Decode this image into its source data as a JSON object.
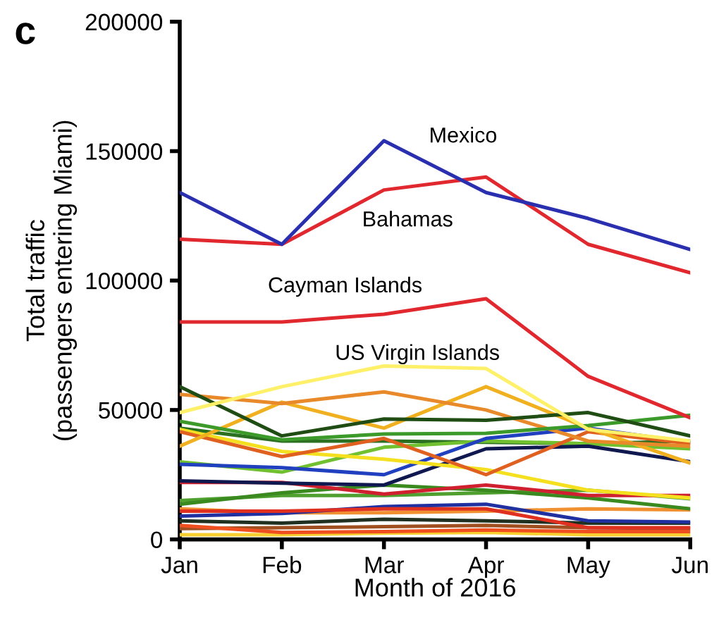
{
  "chart_data": {
    "type": "line",
    "xlabel": "Month of 2016",
    "ylabel": "Total traffic\n(passengers entering Miami)",
    "categories": [
      "Jan",
      "Feb",
      "Mar",
      "Apr",
      "May",
      "Jun"
    ],
    "ylim": [
      0,
      200000
    ],
    "yticks": [
      0,
      50000,
      100000,
      150000,
      200000
    ],
    "grid": false,
    "legend": false,
    "marker": "none",
    "line_style": "solid",
    "annotations": [
      "c"
    ],
    "series": [
      {
        "name": "Mexico",
        "color": "#2a2fb0",
        "values": [
          134000,
          114000,
          154000,
          134000,
          124000,
          112000
        ]
      },
      {
        "name": "Bahamas",
        "color": "#e0282e",
        "values": [
          116000,
          114000,
          135000,
          140000,
          114000,
          103000
        ]
      },
      {
        "name": "Cayman Islands",
        "color": "#e0282e",
        "values": [
          84000,
          84000,
          87000,
          93000,
          63000,
          47000
        ]
      },
      {
        "name": "US Virgin Islands",
        "color": "#fff06a",
        "values": [
          49000,
          59000,
          67000,
          66000,
          42500,
          38000
        ]
      },
      {
        "color": "#1f4d14",
        "values": [
          59000,
          40000,
          46500,
          46000,
          49000,
          40000
        ]
      },
      {
        "color": "#3c9a2a",
        "values": [
          45600,
          38500,
          40700,
          41000,
          44000,
          48000
        ]
      },
      {
        "color": "#e8892a",
        "values": [
          56000,
          52500,
          57000,
          50000,
          38000,
          36000
        ]
      },
      {
        "color": "#f0b020",
        "values": [
          36000,
          53000,
          43000,
          59000,
          43000,
          29500
        ]
      },
      {
        "color": "#e06020",
        "values": [
          41600,
          32000,
          39000,
          25000,
          41600,
          37000
        ]
      },
      {
        "color": "#f5e020",
        "values": [
          42500,
          34000,
          31000,
          27000,
          19000,
          16000
        ]
      },
      {
        "color": "#2040c0",
        "values": [
          29000,
          27700,
          25000,
          39000,
          43000,
          37500
        ]
      },
      {
        "color": "#101850",
        "values": [
          22600,
          21700,
          21000,
          35000,
          36000,
          30000
        ]
      },
      {
        "color": "#70c030",
        "values": [
          30000,
          26000,
          35600,
          38000,
          37000,
          35000
        ]
      },
      {
        "color": "#2a7020",
        "values": [
          43000,
          38000,
          38000,
          37500,
          37000,
          38000
        ]
      },
      {
        "color": "#d02030",
        "values": [
          22000,
          22000,
          17500,
          21000,
          17000,
          17000
        ]
      },
      {
        "color": "#3a8a20",
        "values": [
          13600,
          18000,
          21000,
          19000,
          16000,
          11800
        ]
      },
      {
        "color": "#50a030",
        "values": [
          15000,
          17000,
          17000,
          18000,
          19000,
          15700
        ]
      },
      {
        "color": "#e03020",
        "values": [
          10900,
          10900,
          11800,
          11800,
          4500,
          4500
        ]
      },
      {
        "color": "#2030a0",
        "values": [
          9000,
          10000,
          12700,
          13600,
          7200,
          6700
        ]
      },
      {
        "color": "#f09030",
        "values": [
          11800,
          10300,
          10300,
          10900,
          11800,
          11400
        ]
      },
      {
        "color": "#203020",
        "values": [
          7200,
          6300,
          7800,
          7200,
          6300,
          6300
        ]
      },
      {
        "color": "#f05020",
        "values": [
          5400,
          2700,
          3000,
          3600,
          3000,
          3000
        ]
      },
      {
        "color": "#f8d030",
        "values": [
          1800,
          1800,
          2400,
          2700,
          1800,
          1800
        ]
      },
      {
        "color": "#a05020",
        "values": [
          4200,
          4500,
          4900,
          5400,
          4500,
          4200
        ]
      }
    ]
  }
}
